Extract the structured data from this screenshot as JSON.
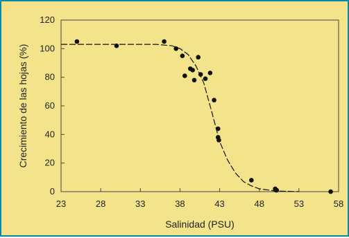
{
  "colors": {
    "background": "#f3e38a",
    "border": "#0a87a8",
    "ink": "#111111"
  },
  "chart_data": {
    "type": "scatter",
    "title": "",
    "xlabel": "Salinidad (PSU)",
    "ylabel": "Crecimiento de las hojas (%)",
    "xlim": [
      23,
      58
    ],
    "ylim": [
      0,
      120
    ],
    "x_ticks": [
      "23",
      "28",
      "33",
      "38",
      "43",
      "48",
      "53",
      "58"
    ],
    "y_ticks": [
      "0",
      "20",
      "40",
      "60",
      "80",
      "100",
      "120"
    ],
    "grid": false,
    "legend": "none",
    "points": [
      {
        "x": 25.0,
        "y": 105
      },
      {
        "x": 30.0,
        "y": 102
      },
      {
        "x": 36.0,
        "y": 105
      },
      {
        "x": 37.5,
        "y": 100
      },
      {
        "x": 38.3,
        "y": 95
      },
      {
        "x": 38.6,
        "y": 81
      },
      {
        "x": 39.3,
        "y": 86
      },
      {
        "x": 39.6,
        "y": 85
      },
      {
        "x": 39.8,
        "y": 78
      },
      {
        "x": 40.3,
        "y": 94
      },
      {
        "x": 40.6,
        "y": 82
      },
      {
        "x": 41.2,
        "y": 79
      },
      {
        "x": 41.8,
        "y": 83
      },
      {
        "x": 42.3,
        "y": 64
      },
      {
        "x": 42.8,
        "y": 44
      },
      {
        "x": 42.8,
        "y": 38
      },
      {
        "x": 42.9,
        "y": 36
      },
      {
        "x": 47.0,
        "y": 8
      },
      {
        "x": 50.0,
        "y": 2
      },
      {
        "x": 50.1,
        "y": 1
      },
      {
        "x": 50.2,
        "y": 1
      },
      {
        "x": 57.0,
        "y": 0
      }
    ],
    "fit_curve": [
      {
        "x": 23,
        "y": 103
      },
      {
        "x": 30,
        "y": 103
      },
      {
        "x": 35,
        "y": 103
      },
      {
        "x": 37,
        "y": 102
      },
      {
        "x": 38,
        "y": 100
      },
      {
        "x": 39,
        "y": 96
      },
      {
        "x": 40,
        "y": 88
      },
      {
        "x": 41,
        "y": 76
      },
      {
        "x": 42,
        "y": 56
      },
      {
        "x": 43,
        "y": 35
      },
      {
        "x": 44,
        "y": 22
      },
      {
        "x": 45,
        "y": 13
      },
      {
        "x": 46,
        "y": 7
      },
      {
        "x": 47,
        "y": 4
      },
      {
        "x": 48,
        "y": 2
      },
      {
        "x": 50,
        "y": 0.5
      },
      {
        "x": 53,
        "y": 0
      }
    ]
  }
}
